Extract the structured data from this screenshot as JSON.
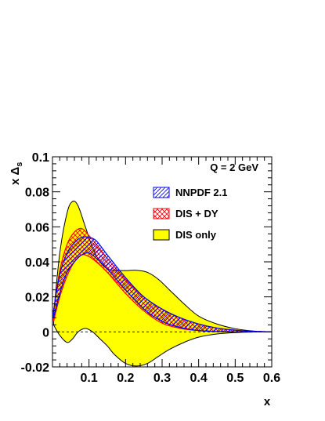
{
  "chart_data": {
    "type": "area",
    "xlabel": "x",
    "ylabel": "x Δ",
    "ylabel_sub": "s",
    "annotation": "Q = 2 GeV",
    "xlim": [
      0.0,
      0.6
    ],
    "ylim": [
      -0.02,
      0.1
    ],
    "x_ticks": [
      0.1,
      0.2,
      0.3,
      0.4,
      0.5,
      0.6
    ],
    "y_ticks": [
      -0.02,
      0,
      0.02,
      0.04,
      0.06,
      0.08,
      0.1
    ],
    "grid": false,
    "legend_position": "top-right",
    "series": [
      {
        "name": "DIS only",
        "fill": "#ffff00",
        "edge": "#000000",
        "x": [
          0.003,
          0.02,
          0.04,
          0.055,
          0.07,
          0.09,
          0.11,
          0.13,
          0.15,
          0.17,
          0.2,
          0.23,
          0.26,
          0.29,
          0.32,
          0.36,
          0.4,
          0.45,
          0.5,
          0.55,
          0.6
        ],
        "upper": [
          0.01,
          0.045,
          0.068,
          0.0745,
          0.072,
          0.06,
          0.048,
          0.04,
          0.036,
          0.0352,
          0.035,
          0.0352,
          0.034,
          0.03,
          0.024,
          0.016,
          0.009,
          0.0045,
          0.0018,
          0.0005,
          0.0
        ],
        "lower": [
          0.004,
          -0.002,
          -0.006,
          -0.004,
          0.0,
          0.002,
          0.0,
          -0.004,
          -0.008,
          -0.013,
          -0.018,
          -0.0195,
          -0.018,
          -0.014,
          -0.01,
          -0.006,
          -0.003,
          -0.0012,
          -0.0004,
          -0.0001,
          0.0
        ]
      },
      {
        "name": "DIS + DY",
        "fill": "#ff0000",
        "edge": "#ff0000",
        "x": [
          0.003,
          0.02,
          0.04,
          0.06,
          0.08,
          0.1,
          0.12,
          0.15,
          0.2,
          0.25,
          0.3,
          0.35,
          0.4,
          0.45,
          0.5,
          0.55,
          0.6
        ],
        "upper": [
          0.012,
          0.035,
          0.05,
          0.057,
          0.059,
          0.055,
          0.05,
          0.042,
          0.03,
          0.02,
          0.013,
          0.008,
          0.0045,
          0.0022,
          0.001,
          0.0003,
          0.0
        ],
        "lower": [
          0.006,
          0.02,
          0.032,
          0.04,
          0.044,
          0.043,
          0.04,
          0.034,
          0.022,
          0.012,
          0.005,
          0.002,
          0.0007,
          0.0002,
          0.0,
          0.0,
          0.0
        ]
      },
      {
        "name": "NNPDF 2.1",
        "fill": "#0000ff",
        "edge": "#0000ff",
        "x": [
          0.003,
          0.02,
          0.04,
          0.06,
          0.08,
          0.1,
          0.12,
          0.15,
          0.2,
          0.25,
          0.3,
          0.35,
          0.4,
          0.45,
          0.5,
          0.55,
          0.6
        ],
        "upper": [
          0.012,
          0.033,
          0.045,
          0.051,
          0.054,
          0.054,
          0.052,
          0.044,
          0.031,
          0.02,
          0.013,
          0.008,
          0.0045,
          0.0022,
          0.001,
          0.0003,
          0.0
        ],
        "lower": [
          0.008,
          0.022,
          0.034,
          0.04,
          0.044,
          0.045,
          0.042,
          0.036,
          0.024,
          0.013,
          0.006,
          0.0025,
          0.0008,
          0.0002,
          0.0,
          0.0,
          0.0
        ]
      }
    ],
    "legend": [
      "NNPDF 2.1",
      "DIS + DY",
      "DIS only"
    ]
  }
}
